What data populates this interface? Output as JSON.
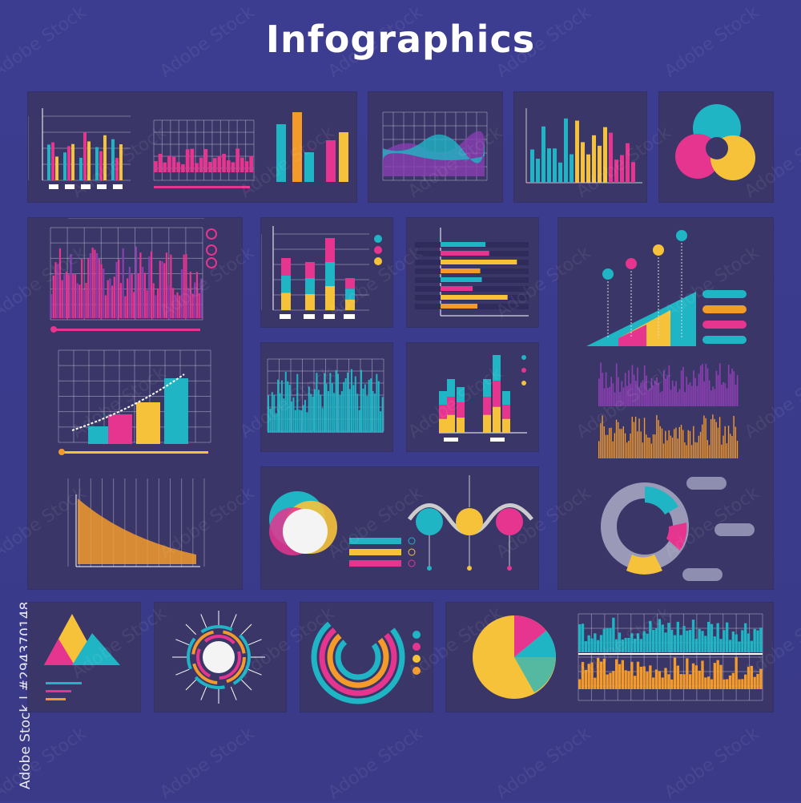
{
  "title": "Infographics",
  "side_credit": "Adobe Stock | #294370148",
  "watermark": "Adobe Stock",
  "colors": {
    "background": "#3b3b8e",
    "panel": "#3a3668",
    "teal": "#1fb5c4",
    "pink": "#e6358f",
    "yellow": "#f6c23a",
    "orange": "#f39a2b",
    "purple": "#8a3fb0",
    "grid": "#c8c8d8"
  }
}
